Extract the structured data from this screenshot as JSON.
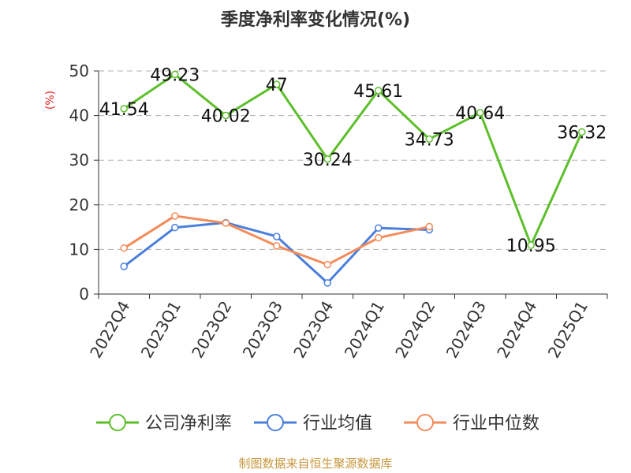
{
  "chart_data": {
    "type": "line",
    "title": "季度净利率变化情况(%)",
    "ylabel": "(%)",
    "categories": [
      "2022Q4",
      "2023Q1",
      "2023Q2",
      "2023Q3",
      "2023Q4",
      "2024Q1",
      "2024Q2",
      "2024Q3",
      "2024Q4",
      "2025Q1"
    ],
    "ylim": [
      0,
      50
    ],
    "yticks": [
      0,
      10,
      20,
      30,
      40,
      50
    ],
    "grid": true,
    "legend_position": "bottom",
    "series": [
      {
        "name": "公司净利率",
        "color": "#5cbf2a",
        "values": [
          41.54,
          49.23,
          40.02,
          47,
          30.24,
          45.61,
          34.73,
          40.64,
          10.95,
          36.32
        ],
        "labels": [
          "41.54",
          "49.23",
          "40.02",
          "47",
          "30.24",
          "45.61",
          "34.73",
          "40.64",
          "10.95",
          "36.32"
        ]
      },
      {
        "name": "行业均值",
        "color": "#4a7fdc",
        "values": [
          6.2,
          14.9,
          16.0,
          12.9,
          2.5,
          14.8,
          14.4,
          null,
          null,
          null
        ]
      },
      {
        "name": "行业中位数",
        "color": "#f48b5a",
        "values": [
          10.3,
          17.5,
          15.9,
          10.8,
          6.6,
          12.6,
          15.1,
          null,
          null,
          null
        ]
      }
    ]
  },
  "footer": {
    "source": "制图数据来自恒生聚源数据库"
  }
}
